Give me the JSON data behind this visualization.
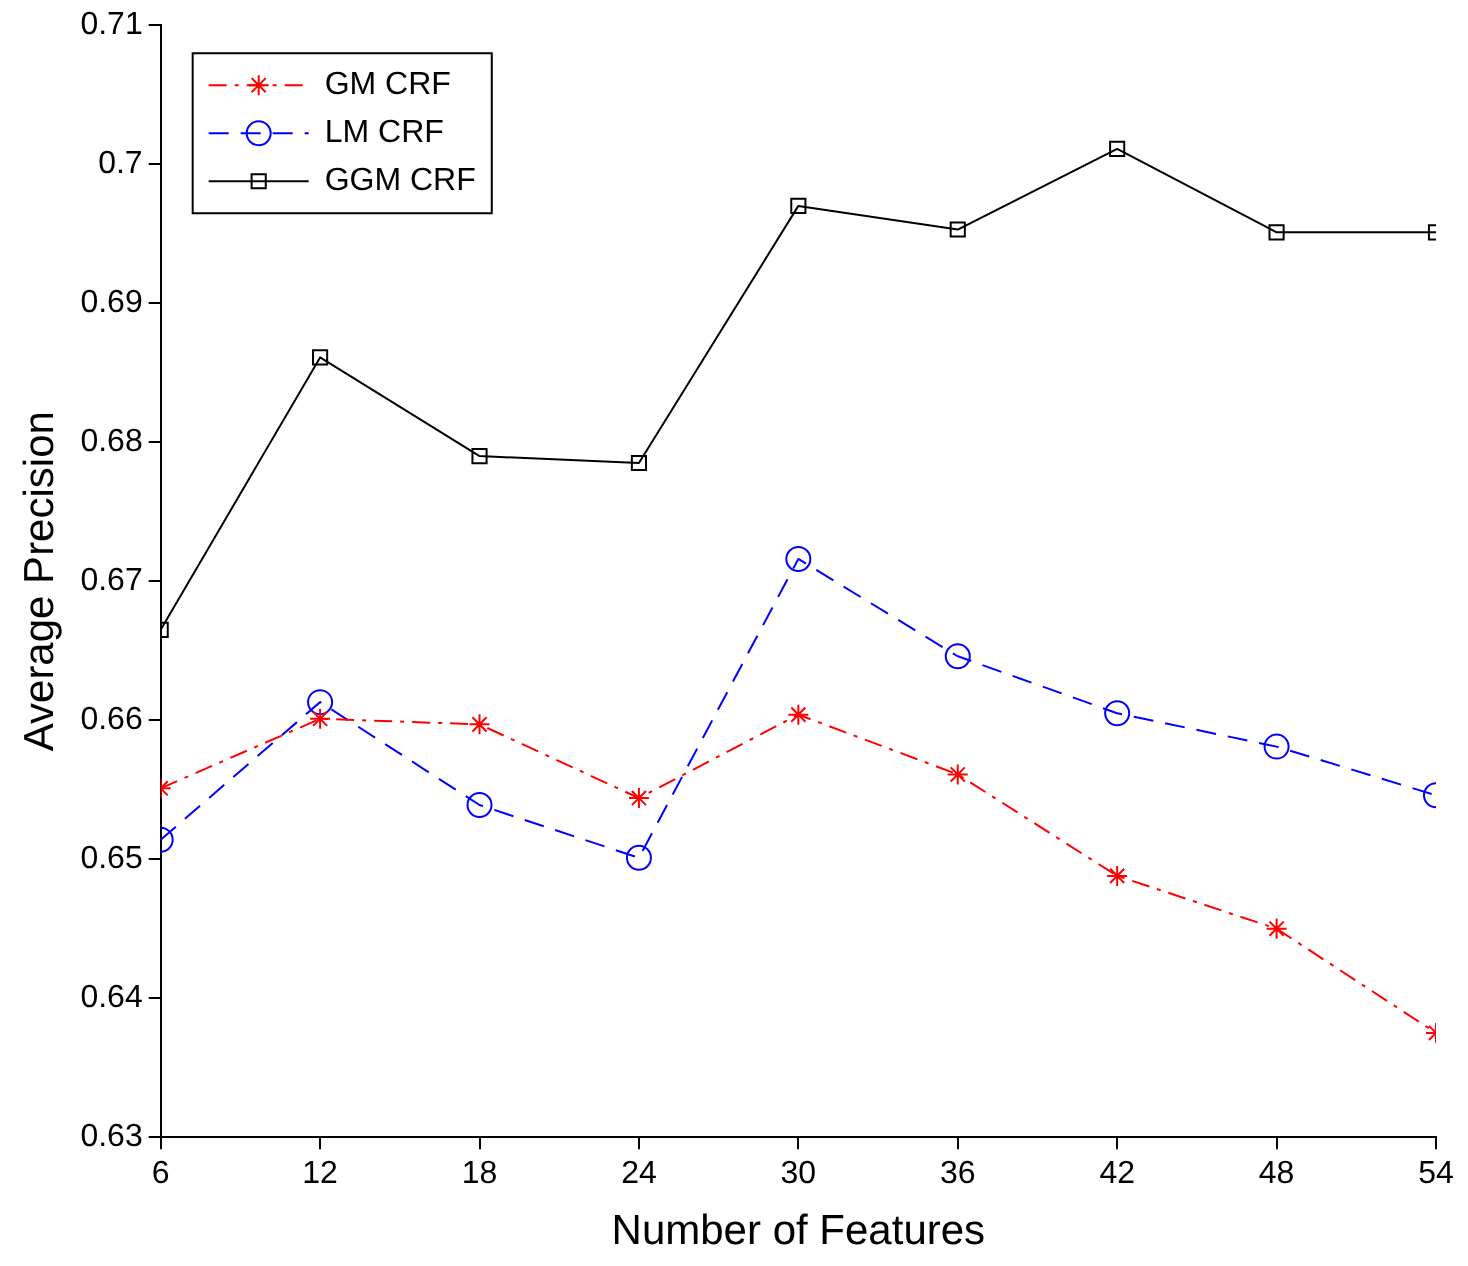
{
  "chart_data": {
    "type": "line",
    "xlabel": "Number of Features",
    "ylabel": "Average Precision",
    "x": [
      6,
      12,
      18,
      24,
      30,
      36,
      42,
      48,
      54
    ],
    "xlim": [
      6,
      54
    ],
    "xticks": [
      6,
      12,
      18,
      24,
      30,
      36,
      42,
      48,
      54
    ],
    "ylim": [
      0.63,
      0.71
    ],
    "yticks": [
      0.63,
      0.64,
      0.65,
      0.66,
      0.67,
      0.68,
      0.69,
      0.7,
      0.71
    ],
    "grid": false,
    "legend": "top left",
    "series": [
      {
        "name": "GM CRF",
        "color": "#ff0000",
        "marker": "cross",
        "line_style": "dashdot",
        "values": [
          0.6551,
          0.6601,
          0.6597,
          0.6544,
          0.6604,
          0.6561,
          0.6488,
          0.645,
          0.6375
        ]
      },
      {
        "name": "LM CRF",
        "color": "#0000ff",
        "marker": "circle",
        "line_style": "dashed",
        "values": [
          0.6514,
          0.6613,
          0.6539,
          0.6501,
          0.6716,
          0.6646,
          0.6605,
          0.6581,
          0.6546
        ]
      },
      {
        "name": "GGM CRF",
        "color": "#000000",
        "marker": "square",
        "line_style": "solid",
        "values": [
          0.6665,
          0.6861,
          0.679,
          0.6785,
          0.697,
          0.6953,
          0.7011,
          0.6951,
          0.6951
        ]
      }
    ]
  }
}
